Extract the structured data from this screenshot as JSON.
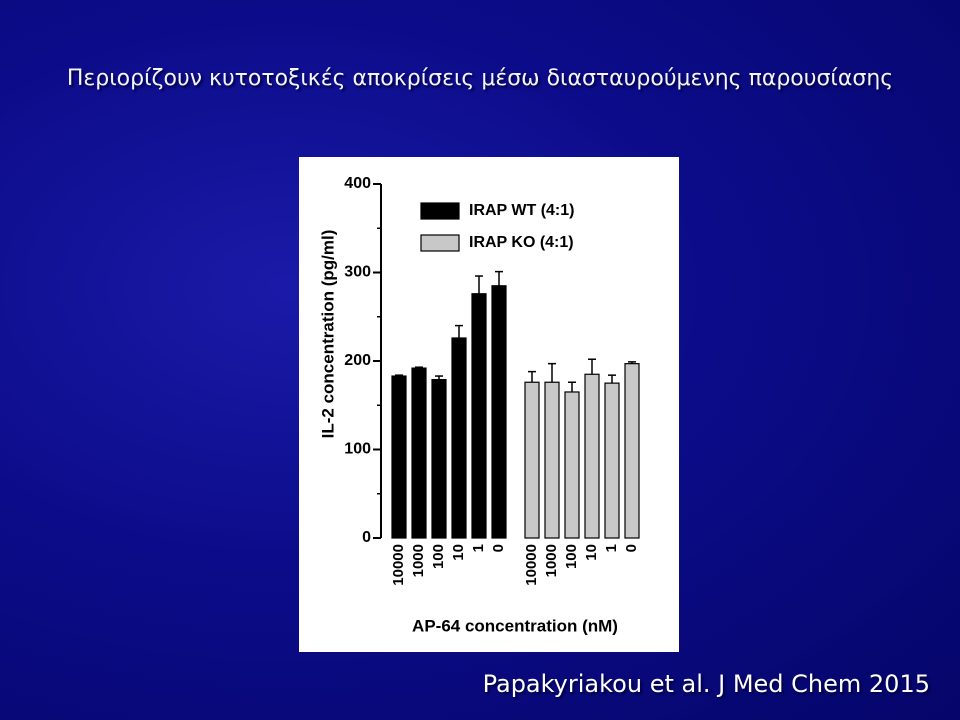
{
  "slide": {
    "title": "Περιορίζουν κυτοτοξικές αποκρίσεις μέσω διασταυρούμενης παρουσίασης",
    "citation": "Papakyriakou et al. J Med Chem 2015"
  },
  "chart_data": {
    "type": "bar",
    "categories": [
      "10000",
      "1000",
      "100",
      "10",
      "1",
      "0"
    ],
    "series": [
      {
        "name": "IRAP WT (4:1)",
        "color": "#000000",
        "values": [
          183,
          192,
          179,
          226,
          276,
          285
        ],
        "errors": [
          1,
          1,
          4,
          14,
          20,
          16
        ]
      },
      {
        "name": "IRAP KO (4:1)",
        "color": "#c8c8c8",
        "values": [
          176,
          176,
          165,
          185,
          175,
          197
        ],
        "errors": [
          12,
          21,
          11,
          17,
          9,
          2
        ]
      }
    ],
    "x_label": "AP-64 concentration (nM)",
    "y_label": "IL-2 concentration (pg/ml)",
    "ylim": [
      0,
      400
    ],
    "yticks": [
      0,
      100,
      200,
      300,
      400
    ],
    "yminorticks": [
      50,
      150,
      250,
      350
    ],
    "legend": "upper-left"
  }
}
